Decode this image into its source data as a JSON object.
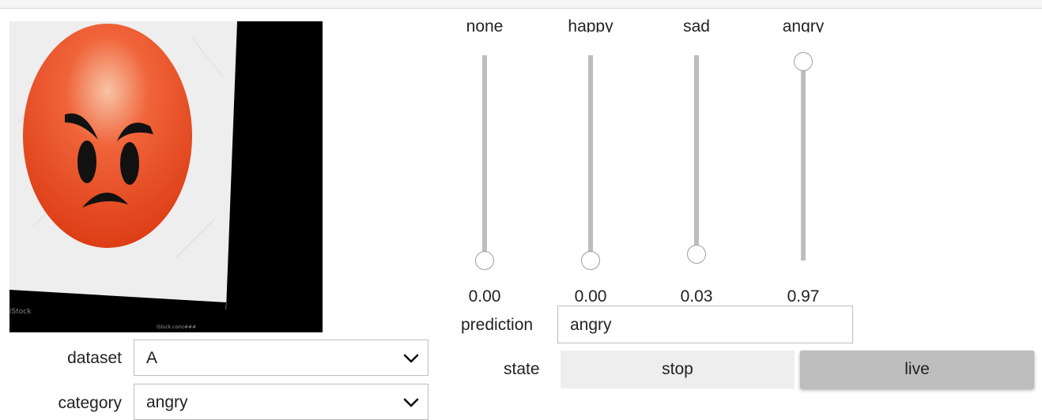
{
  "image": {
    "alt": "angry emoji photo",
    "watermark": "iStock",
    "caption": "iStock.com/###"
  },
  "dataset": {
    "label": "dataset",
    "value": "A"
  },
  "category": {
    "label": "category",
    "value": "angry"
  },
  "sliders": [
    {
      "name": "none",
      "value": "0.00",
      "level": 0.0
    },
    {
      "name": "happy",
      "value": "0.00",
      "level": 0.0
    },
    {
      "name": "sad",
      "value": "0.03",
      "level": 0.03
    },
    {
      "name": "angry",
      "value": "0.97",
      "level": 0.97
    }
  ],
  "prediction": {
    "label": "prediction",
    "value": "angry"
  },
  "state": {
    "label": "state",
    "stop_label": "stop",
    "live_label": "live"
  },
  "colors": {
    "face": "#ee5a2a",
    "track": "#bdbdbd",
    "live_button": "#bdbdbd",
    "stop_button": "#eeeeee"
  }
}
